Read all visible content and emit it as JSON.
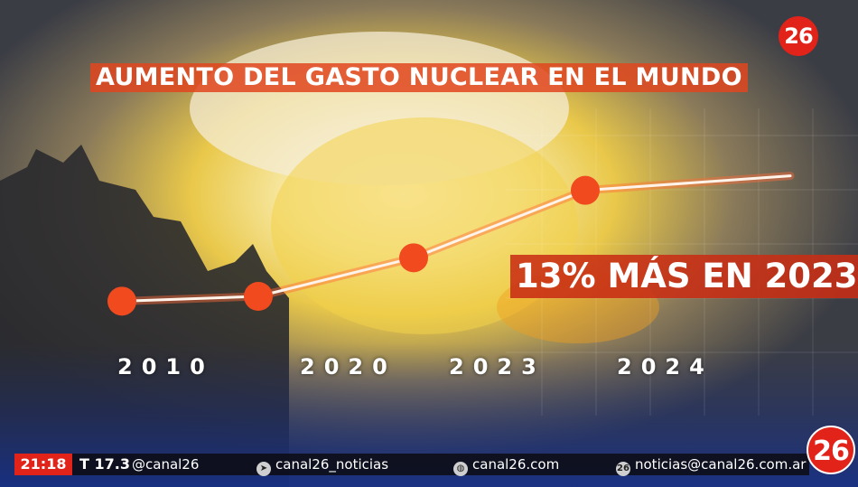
{
  "title": "AUMENTO DEL GASTO NUCLEAR EN EL MUNDO",
  "annotation": "13% MÁS EN 2023",
  "channel_logo": "26",
  "colors": {
    "accent": "#e2231a",
    "marker": "#f04a1e",
    "banner": "#e1461e"
  },
  "chart_data": {
    "type": "line",
    "x_labels": [
      "2010",
      "2020",
      "2023",
      "2024"
    ],
    "series": [
      {
        "name": "",
        "points_x": [
          2010,
          2015,
          2020,
          2023,
          2024
        ],
        "values": [
          1.0,
          1.05,
          1.45,
          2.15,
          2.3
        ]
      }
    ],
    "ylim": [
      0,
      3
    ],
    "grid": false
  },
  "ticker": {
    "time": "21:18",
    "temperature": "T 17.3",
    "items": [
      {
        "icon": "at-icon",
        "text": "@canal26"
      },
      {
        "icon": "telegram-icon",
        "text": "canal26_noticias"
      },
      {
        "icon": "globe-icon",
        "text": "canal26.com"
      },
      {
        "icon": "whatsapp-icon",
        "text": "noticias@canal26.com.ar"
      }
    ]
  }
}
